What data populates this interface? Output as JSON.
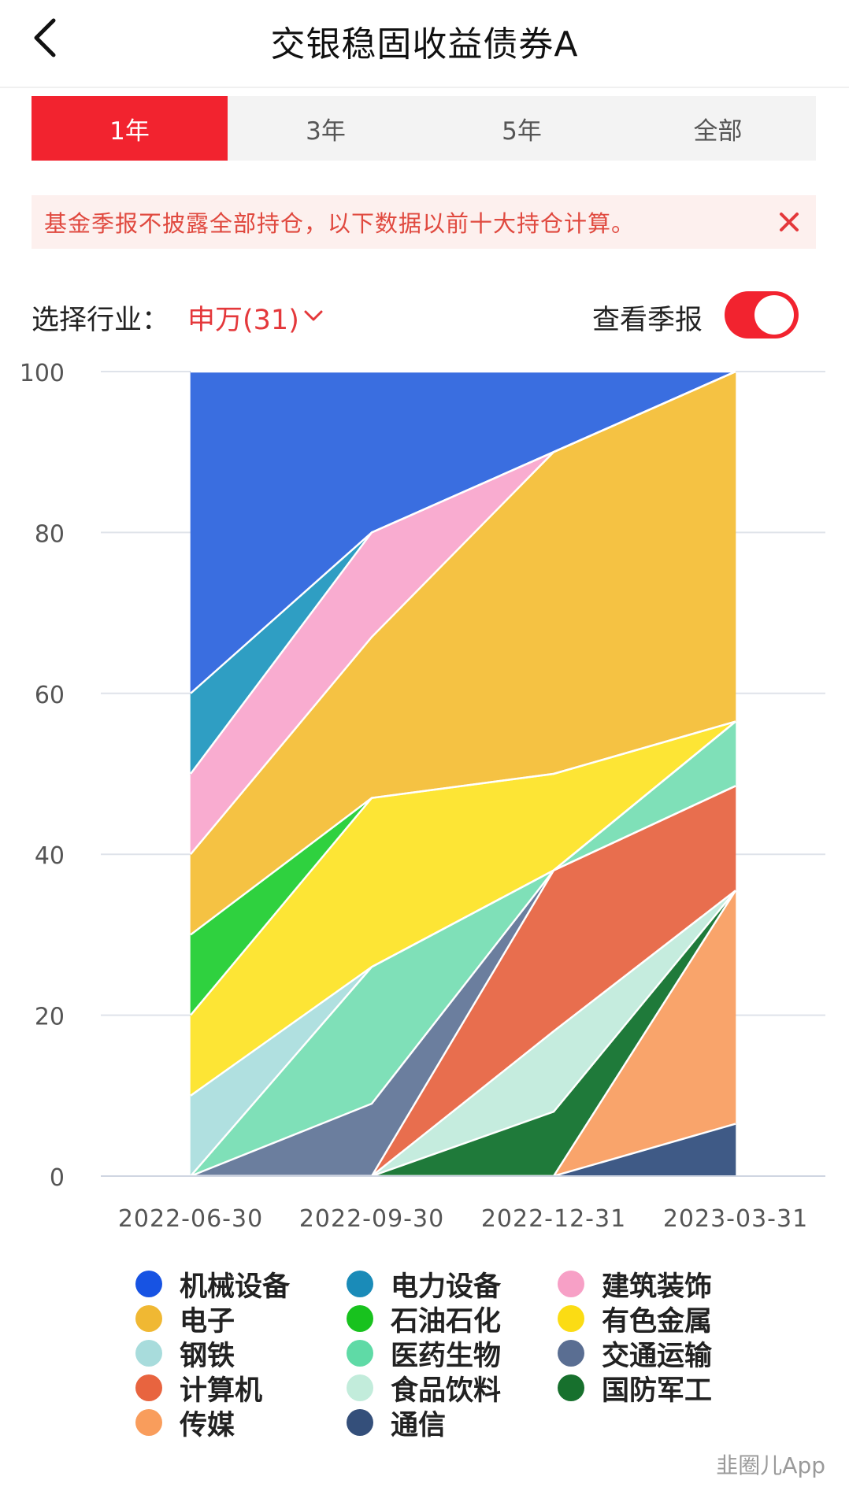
{
  "header": {
    "title": "交银稳固收益债券A"
  },
  "tabs": [
    {
      "label": "1年",
      "active": true
    },
    {
      "label": "3年",
      "active": false
    },
    {
      "label": "5年",
      "active": false
    },
    {
      "label": "全部",
      "active": false
    }
  ],
  "notice": {
    "text": "基金季报不披露全部持仓，以下数据以前十大持仓计算。"
  },
  "filter": {
    "label": "选择行业：",
    "value": "申万(31)"
  },
  "report_toggle": {
    "label": "查看季报",
    "on": true
  },
  "chart_data": {
    "type": "area",
    "stacked": true,
    "x": [
      "2022-06-30",
      "2022-09-30",
      "2022-12-31",
      "2023-03-31"
    ],
    "ylim": [
      0,
      100
    ],
    "yticks": [
      0,
      20,
      40,
      60,
      80,
      100
    ],
    "grid": true,
    "series": [
      {
        "name": "通信",
        "color": "#3f5a86",
        "values": [
          0,
          0,
          0,
          6.5
        ]
      },
      {
        "name": "传媒",
        "color": "#f9a46b",
        "values": [
          0,
          0,
          0,
          29
        ]
      },
      {
        "name": "国防军工",
        "color": "#1f7a3a",
        "values": [
          0,
          0,
          8,
          0
        ]
      },
      {
        "name": "食品饮料",
        "color": "#c5ecde",
        "values": [
          0,
          0,
          10,
          0
        ]
      },
      {
        "name": "计算机",
        "color": "#e86e4e",
        "values": [
          0,
          0,
          20,
          13
        ]
      },
      {
        "name": "交通运输",
        "color": "#6b7e9e",
        "values": [
          0,
          9,
          0,
          0
        ]
      },
      {
        "name": "医药生物",
        "color": "#7fe0b8",
        "values": [
          0,
          17,
          0,
          8
        ]
      },
      {
        "name": "钢铁",
        "color": "#b0e0e0",
        "values": [
          10,
          0,
          0,
          0
        ]
      },
      {
        "name": "有色金属",
        "color": "#fde535",
        "values": [
          10,
          21,
          12,
          0
        ]
      },
      {
        "name": "石油石化",
        "color": "#2fd13f",
        "values": [
          10,
          0,
          0,
          0
        ]
      },
      {
        "name": "电子",
        "color": "#f5c243",
        "values": [
          10,
          20,
          40,
          43.5
        ]
      },
      {
        "name": "建筑装饰",
        "color": "#f9acd0",
        "values": [
          10,
          13,
          0,
          0
        ]
      },
      {
        "name": "电力设备",
        "color": "#2f9ec3",
        "values": [
          10,
          0,
          0,
          0
        ]
      },
      {
        "name": "机械设备",
        "color": "#3a6ee0",
        "values": [
          40,
          20,
          10,
          0
        ]
      }
    ]
  },
  "legend": [
    {
      "name": "机械设备",
      "color": "#1753e3"
    },
    {
      "name": "电力设备",
      "color": "#1a8bb8"
    },
    {
      "name": "建筑装饰",
      "color": "#f7a0c6"
    },
    {
      "name": "电子",
      "color": "#f0b833"
    },
    {
      "name": "石油石化",
      "color": "#18c21e"
    },
    {
      "name": "有色金属",
      "color": "#fbdc14"
    },
    {
      "name": "钢铁",
      "color": "#a8dcdc"
    },
    {
      "name": "医药生物",
      "color": "#5fdaa6"
    },
    {
      "name": "交通运输",
      "color": "#5a6e92"
    },
    {
      "name": "计算机",
      "color": "#e8643f"
    },
    {
      "name": "食品饮料",
      "color": "#c2ecdb"
    },
    {
      "name": "国防军工",
      "color": "#17702d"
    },
    {
      "name": "传媒",
      "color": "#f99d5c"
    },
    {
      "name": "通信",
      "color": "#344f7a"
    }
  ],
  "watermark": "韭圈儿App",
  "colors": {
    "accent": "#f2232f",
    "notice_bg": "#fdf0ee",
    "notice_text": "#e0493f"
  }
}
